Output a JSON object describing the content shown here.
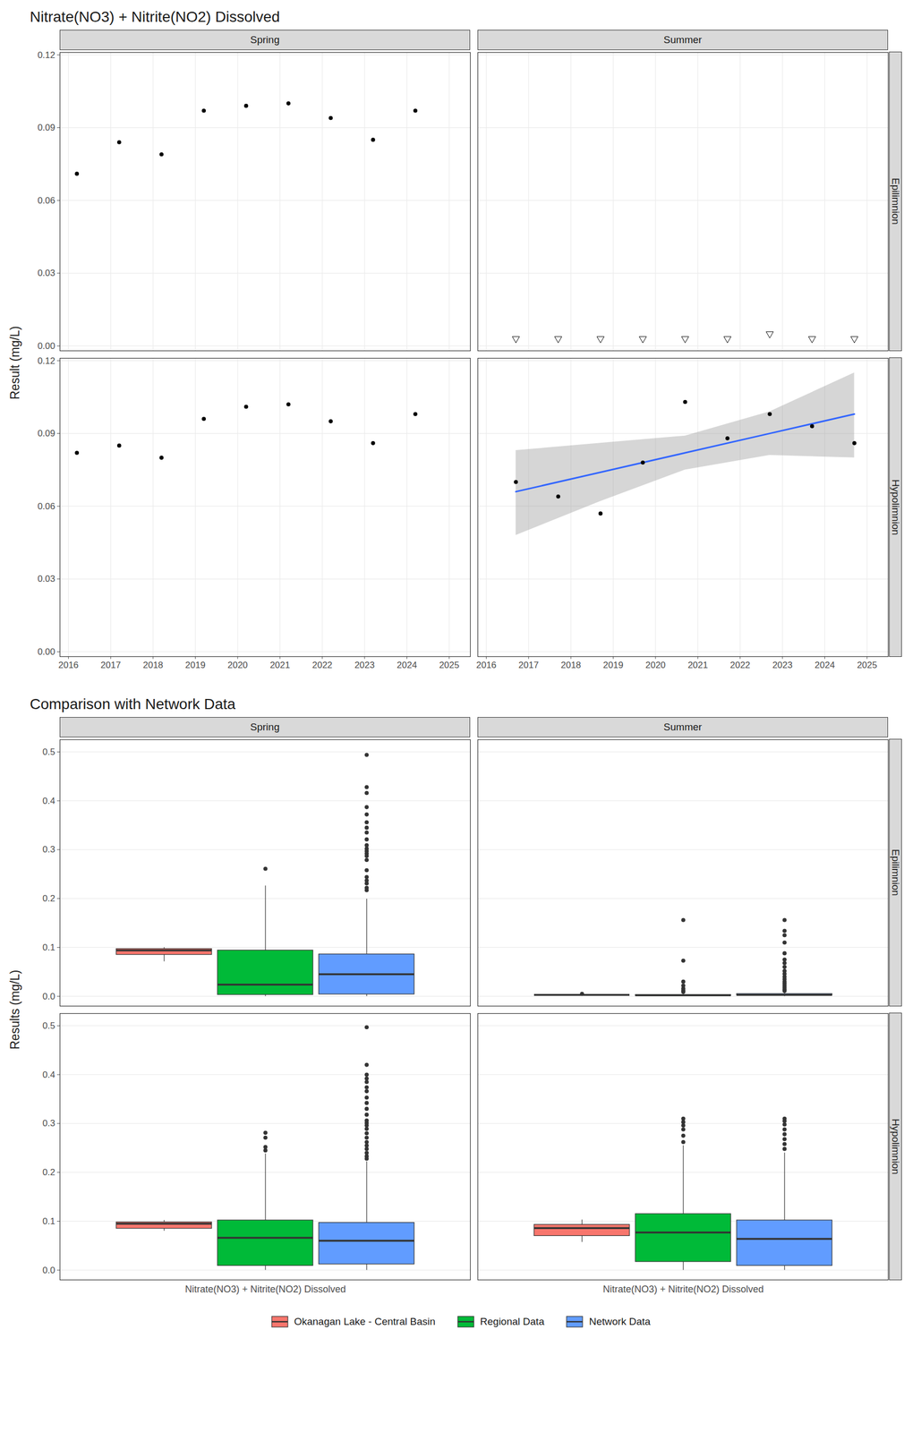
{
  "chart_data": [
    {
      "type": "scatter",
      "title": "Nitrate(NO3) + Nitrite(NO2) Dissolved",
      "y_label": "Result (mg/L)",
      "columns": [
        "Spring",
        "Summer"
      ],
      "rows": [
        "Epilimnion",
        "Hypolimnion"
      ],
      "xlim": [
        2015.8,
        2025.5
      ],
      "xticks": [
        2016,
        2017,
        2018,
        2019,
        2020,
        2021,
        2022,
        2023,
        2024,
        2025
      ],
      "ylim": [
        -0.002,
        0.121
      ],
      "yticks": [
        {
          "value": 0,
          "label": "0.00"
        },
        {
          "value": 0.03,
          "label": "0.03"
        },
        {
          "value": 0.06,
          "label": "0.06"
        },
        {
          "value": 0.09,
          "label": "0.09"
        },
        {
          "value": 0.12,
          "label": "0.12"
        }
      ],
      "grid": true,
      "panels": [
        {
          "column": "Spring",
          "row": "Epilimnion",
          "series": [
            {
              "color": "#000000",
              "marker": "circle",
              "x": [
                2016.2,
                2017.2,
                2018.2,
                2019.2,
                2020.2,
                2021.2,
                2022.2,
                2023.2,
                2024.2
              ],
              "values": [
                0.071,
                0.084,
                0.079,
                0.097,
                0.099,
                0.1,
                0.094,
                0.085,
                0.097
              ]
            }
          ]
        },
        {
          "column": "Summer",
          "row": "Epilimnion",
          "series": [
            {
              "color": "#000000",
              "marker": "triangle-down",
              "x": [
                2016.7,
                2017.7,
                2018.7,
                2019.7,
                2020.7,
                2021.7,
                2022.7,
                2023.7,
                2024.7
              ],
              "values": [
                0.003,
                0.003,
                0.003,
                0.003,
                0.003,
                0.003,
                0.005,
                0.003,
                0.003
              ]
            }
          ]
        },
        {
          "column": "Spring",
          "row": "Hypolimnion",
          "series": [
            {
              "color": "#000000",
              "marker": "circle",
              "x": [
                2016.2,
                2017.2,
                2018.2,
                2019.2,
                2020.2,
                2021.2,
                2022.2,
                2023.2,
                2024.2
              ],
              "values": [
                0.082,
                0.085,
                0.08,
                0.096,
                0.101,
                0.102,
                0.095,
                0.086,
                0.098
              ]
            }
          ]
        },
        {
          "column": "Summer",
          "row": "Hypolimnion",
          "series": [
            {
              "type": "line",
              "color": "#3366FF",
              "x": [
                2016.7,
                2018.7,
                2020.7,
                2022.7,
                2024.7
              ],
              "values": [
                0.066,
                0.074,
                0.082,
                0.09,
                0.098
              ],
              "lower": [
                0.048,
                0.062,
                0.075,
                0.081,
                0.08
              ],
              "upper": [
                0.083,
                0.086,
                0.089,
                0.099,
                0.115
              ]
            },
            {
              "color": "#000000",
              "marker": "circle",
              "x": [
                2016.7,
                2017.7,
                2018.7,
                2019.7,
                2020.7,
                2021.7,
                2022.7,
                2023.7,
                2024.7
              ],
              "values": [
                0.07,
                0.064,
                0.057,
                0.078,
                0.103,
                0.088,
                0.098,
                0.093,
                0.086
              ]
            }
          ]
        }
      ]
    },
    {
      "type": "box",
      "title": "Comparison with Network Data",
      "y_label": "Results (mg/L)",
      "columns": [
        "Spring",
        "Summer"
      ],
      "rows": [
        "Epilimnion",
        "Hypolimnion"
      ],
      "categories": [
        "Nitrate(NO3) + Nitrite(NO2) Dissolved"
      ],
      "ylim": [
        -0.02,
        0.525
      ],
      "yticks": [
        {
          "value": 0,
          "label": "0.0"
        },
        {
          "value": 0.1,
          "label": "0.1"
        },
        {
          "value": 0.2,
          "label": "0.2"
        },
        {
          "value": 0.3,
          "label": "0.3"
        },
        {
          "value": 0.4,
          "label": "0.4"
        },
        {
          "value": 0.5,
          "label": "0.5"
        }
      ],
      "grid": true,
      "legend": "bottom",
      "series": [
        {
          "name": "Okanagan Lake - Central Basin",
          "color": "#F8766D"
        },
        {
          "name": "Regional Data",
          "color": "#00BA38"
        },
        {
          "name": "Network Data",
          "color": "#619CFF"
        }
      ],
      "panels": [
        {
          "column": "Spring",
          "row": "Epilimnion",
          "boxes": [
            {
              "min": 0.071,
              "q1": 0.085,
              "median": 0.094,
              "q3": 0.097,
              "max": 0.1,
              "outliers": []
            },
            {
              "min": 0,
              "q1": 0.003,
              "median": 0.024,
              "q3": 0.094,
              "max": 0.226,
              "outliers": [
                0.261
              ]
            },
            {
              "min": 0,
              "q1": 0.004,
              "median": 0.045,
              "q3": 0.086,
              "max": 0.199,
              "outliers": [
                0.217,
                0.222,
                0.231,
                0.237,
                0.244,
                0.258,
                0.279,
                0.287,
                0.292,
                0.297,
                0.302,
                0.309,
                0.321,
                0.335,
                0.345,
                0.356,
                0.372,
                0.387,
                0.416,
                0.428,
                0.494
              ]
            }
          ]
        },
        {
          "column": "Summer",
          "row": "Epilimnion",
          "boxes": [
            {
              "min": 0.003,
              "q1": 0.003,
              "median": 0.003,
              "q3": 0.003,
              "max": 0.003,
              "outliers": [
                0.005
              ]
            },
            {
              "min": 0,
              "q1": 0.001,
              "median": 0.002,
              "q3": 0.003,
              "max": 0.006,
              "outliers": [
                0.009,
                0.012,
                0.016,
                0.022,
                0.03,
                0.073,
                0.156
              ]
            },
            {
              "min": 0,
              "q1": 0.002,
              "median": 0.003,
              "q3": 0.005,
              "max": 0.009,
              "outliers": [
                0.011,
                0.014,
                0.018,
                0.022,
                0.026,
                0.03,
                0.035,
                0.04,
                0.046,
                0.052,
                0.06,
                0.068,
                0.075,
                0.088,
                0.11,
                0.125,
                0.134,
                0.156
              ]
            }
          ]
        },
        {
          "column": "Spring",
          "row": "Hypolimnion",
          "boxes": [
            {
              "min": 0.08,
              "q1": 0.085,
              "median": 0.095,
              "q3": 0.098,
              "max": 0.102,
              "outliers": []
            },
            {
              "min": 0,
              "q1": 0.009,
              "median": 0.066,
              "q3": 0.102,
              "max": 0.238,
              "outliers": [
                0.245,
                0.252,
                0.271,
                0.281
              ]
            },
            {
              "min": 0,
              "q1": 0.012,
              "median": 0.06,
              "q3": 0.097,
              "max": 0.222,
              "outliers": [
                0.228,
                0.233,
                0.24,
                0.248,
                0.255,
                0.262,
                0.271,
                0.28,
                0.289,
                0.296,
                0.301,
                0.306,
                0.318,
                0.33,
                0.342,
                0.353,
                0.366,
                0.374,
                0.385,
                0.392,
                0.4,
                0.42,
                0.497
              ]
            }
          ]
        },
        {
          "column": "Summer",
          "row": "Hypolimnion",
          "boxes": [
            {
              "min": 0.057,
              "q1": 0.07,
              "median": 0.086,
              "q3": 0.093,
              "max": 0.103,
              "outliers": []
            },
            {
              "min": 0,
              "q1": 0.017,
              "median": 0.077,
              "q3": 0.115,
              "max": 0.255,
              "outliers": [
                0.262,
                0.275,
                0.288,
                0.296,
                0.303,
                0.31
              ]
            },
            {
              "min": 0,
              "q1": 0.009,
              "median": 0.064,
              "q3": 0.102,
              "max": 0.24,
              "outliers": [
                0.248,
                0.258,
                0.268,
                0.278,
                0.288,
                0.298,
                0.305,
                0.31
              ]
            }
          ]
        }
      ]
    }
  ]
}
